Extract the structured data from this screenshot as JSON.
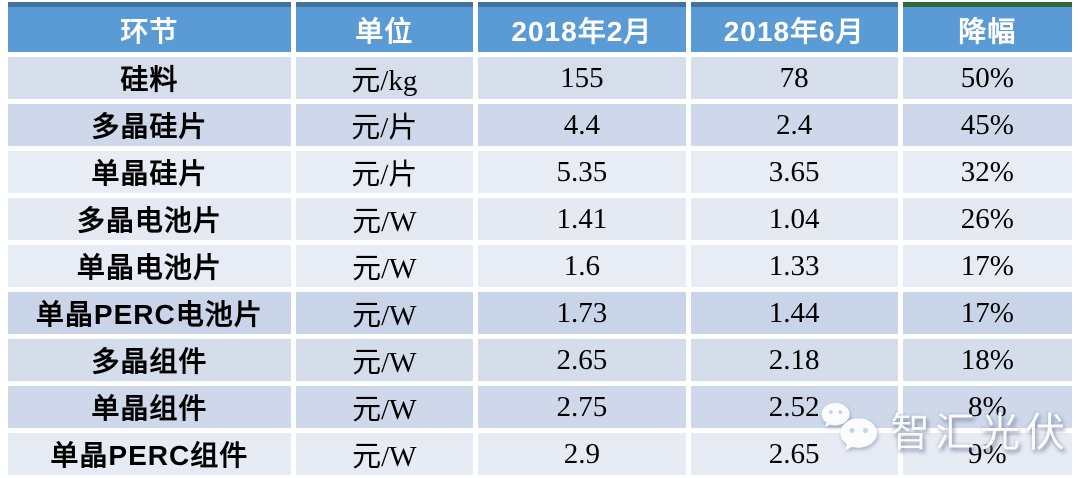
{
  "watermark": {
    "brand_text": "智汇光伏",
    "icon": "wechat-icon"
  },
  "colors": {
    "header_bg": "#5B9BD5",
    "header_text": "#FFFFFF",
    "header_topbar_blue": "#41719C",
    "header_topbar_green": "#2E6B34",
    "body_text": "#000000",
    "grid_gap": "#FFFFFF",
    "watermark_text": "#FFFFFF",
    "row_bg": [
      "#D7DEEB",
      "#CED8EA",
      "#E8ECF4",
      "#E4E9F2",
      "#E8ECF4",
      "#C9D4E8",
      "#D5DDEB",
      "#CED8EA",
      "#E7EBF4"
    ]
  },
  "chart_data": {
    "type": "table",
    "columns": [
      "环节",
      "单位",
      "2018年2月",
      "2018年6月",
      "降幅"
    ],
    "rows": [
      {
        "cells": [
          "硅料",
          "元/kg",
          "155",
          "78",
          "50%"
        ]
      },
      {
        "cells": [
          "多晶硅片",
          "元/片",
          "4.4",
          "2.4",
          "45%"
        ]
      },
      {
        "cells": [
          "单晶硅片",
          "元/片",
          "5.35",
          "3.65",
          "32%"
        ]
      },
      {
        "cells": [
          "多晶电池片",
          "元/W",
          "1.41",
          "1.04",
          "26%"
        ]
      },
      {
        "cells": [
          "单晶电池片",
          "元/W",
          "1.6",
          "1.33",
          "17%"
        ]
      },
      {
        "cells": [
          "单晶PERC电池片",
          "元/W",
          "1.73",
          "1.44",
          "17%"
        ]
      },
      {
        "cells": [
          "多晶组件",
          "元/W",
          "2.65",
          "2.18",
          "18%"
        ]
      },
      {
        "cells": [
          "单晶组件",
          "元/W",
          "2.75",
          "2.52",
          "8%"
        ]
      },
      {
        "cells": [
          "单晶PERC组件",
          "元/W",
          "2.9",
          "2.65",
          "9%"
        ]
      }
    ]
  }
}
